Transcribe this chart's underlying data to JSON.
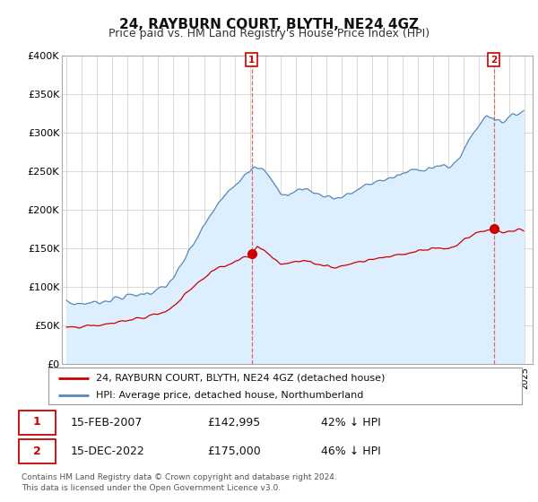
{
  "title": "24, RAYBURN COURT, BLYTH, NE24 4GZ",
  "subtitle": "Price paid vs. HM Land Registry's House Price Index (HPI)",
  "ylabel_ticks": [
    "£0",
    "£50K",
    "£100K",
    "£150K",
    "£200K",
    "£250K",
    "£300K",
    "£350K",
    "£400K"
  ],
  "ylabel_values": [
    0,
    50000,
    100000,
    150000,
    200000,
    250000,
    300000,
    350000,
    400000
  ],
  "ylim": [
    0,
    400000
  ],
  "hpi_color": "#5588bb",
  "hpi_fill_color": "#ddeeff",
  "price_color": "#cc0000",
  "dashed_color": "#dd6666",
  "legend_line1": "24, RAYBURN COURT, BLYTH, NE24 4GZ (detached house)",
  "legend_line2": "HPI: Average price, detached house, Northumberland",
  "table_row1": [
    "1",
    "15-FEB-2007",
    "£142,995",
    "42% ↓ HPI"
  ],
  "table_row2": [
    "2",
    "15-DEC-2022",
    "£175,000",
    "46% ↓ HPI"
  ],
  "footnote": "Contains HM Land Registry data © Crown copyright and database right 2024.\nThis data is licensed under the Open Government Licence v3.0.",
  "sale1_x": 2007.12,
  "sale1_y": 142995,
  "sale2_x": 2022.96,
  "sale2_y": 175000,
  "xlim_left": 1994.7,
  "xlim_right": 2025.5
}
